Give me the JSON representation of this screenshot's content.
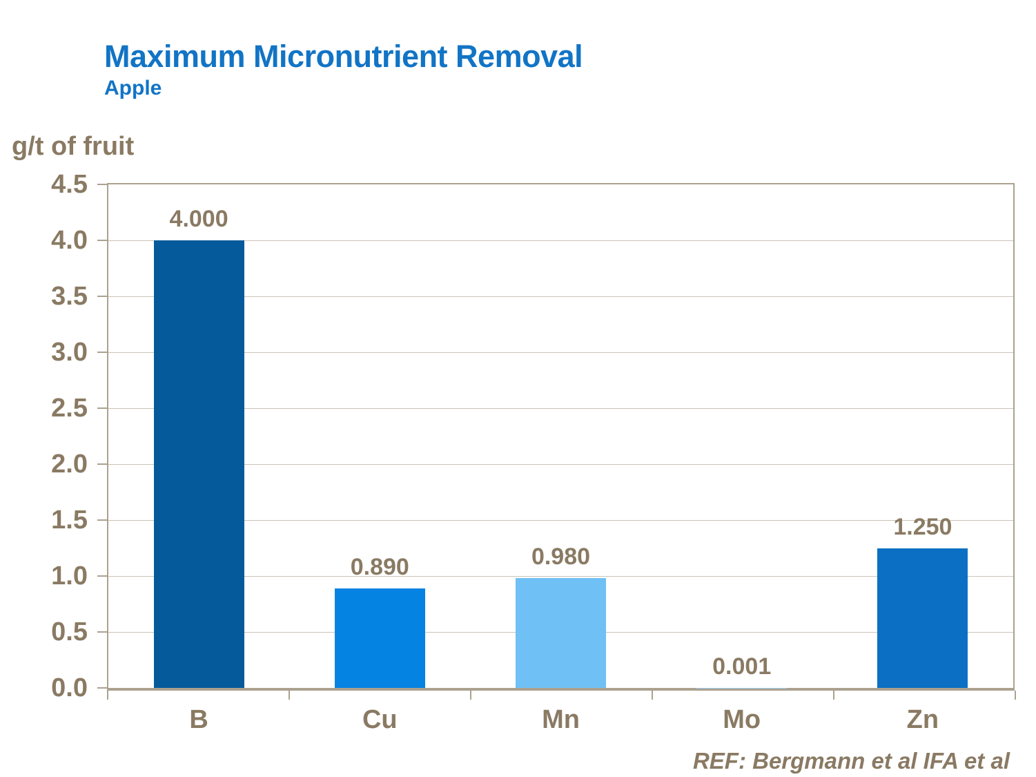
{
  "header": {
    "title": "Maximum Micronutrient Removal",
    "subtitle": "Apple"
  },
  "footer": {
    "reference": "REF: Bergmann et al IFA et al"
  },
  "colors": {
    "title": "#1274c5",
    "text": "#8a7a63",
    "axis": "#aca18f",
    "gridline": "#cac3b6",
    "background": "#ffffff"
  },
  "chart_data": {
    "type": "bar",
    "title": "Maximum Micronutrient Removal",
    "subtitle": "Apple",
    "ylabel": "g/t of fruit",
    "xlabel": "",
    "categories": [
      "B",
      "Cu",
      "Mn",
      "Mo",
      "Zn"
    ],
    "values": [
      4.0,
      0.89,
      0.98,
      0.001,
      1.25
    ],
    "value_labels": [
      "4.000",
      "0.890",
      "0.980",
      "0.001",
      "1.250"
    ],
    "bar_colors": [
      "#055a9b",
      "#0583e2",
      "#6fc0f4",
      "#9fcef2",
      "#0b70c4"
    ],
    "ylim": [
      0,
      4.5
    ],
    "ytick_step": 0.5,
    "ytick_labels": [
      "4.5",
      "4.0",
      "3.5",
      "3.0",
      "2.5",
      "2.0",
      "1.5",
      "1.0",
      "0.5",
      "0.0"
    ],
    "grid": true,
    "legend_position": "none"
  }
}
